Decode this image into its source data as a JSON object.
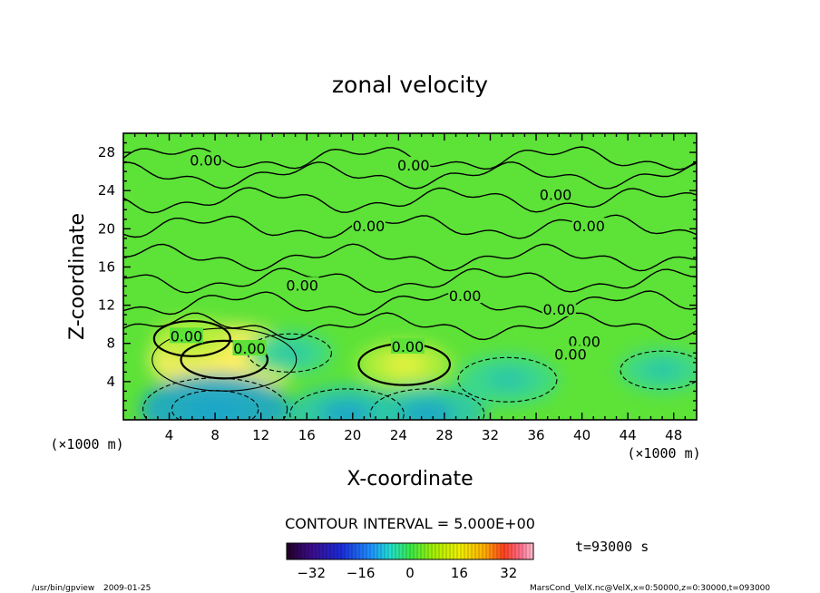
{
  "chart_data": {
    "type": "heatmap",
    "title": "zonal velocity",
    "xlabel": "X-coordinate",
    "ylabel": "Z-coordinate",
    "x_unit": "(×1000 m)",
    "y_unit": "(×1000 m)",
    "xlim": [
      0,
      50
    ],
    "ylim": [
      0,
      30
    ],
    "xticks": [
      4,
      8,
      12,
      16,
      20,
      24,
      28,
      32,
      36,
      40,
      44,
      48
    ],
    "yticks": [
      4,
      8,
      12,
      16,
      20,
      24,
      28
    ],
    "contour_interval_label": "CONTOUR INTERVAL = 5.000E+00",
    "time_label": "t=93000 s",
    "colorbar_ticks": [
      -32,
      -16,
      0,
      16,
      32
    ],
    "colorbar_range": [
      -40,
      40
    ],
    "contour_labels": [
      {
        "text": "0.00",
        "x": 7.2,
        "z": 27.2
      },
      {
        "text": "0.00",
        "x": 25.3,
        "z": 26.7
      },
      {
        "text": "0.00",
        "x": 37.7,
        "z": 23.6
      },
      {
        "text": "0.00",
        "x": 21.4,
        "z": 20.3
      },
      {
        "text": "0.00",
        "x": 40.6,
        "z": 20.3
      },
      {
        "text": "0.00",
        "x": 15.6,
        "z": 14.1
      },
      {
        "text": "0.00",
        "x": 29.8,
        "z": 13.0
      },
      {
        "text": "0.00",
        "x": 38.0,
        "z": 11.6
      },
      {
        "text": "0.00",
        "x": 5.5,
        "z": 8.8
      },
      {
        "text": "0.00",
        "x": 11.0,
        "z": 7.5
      },
      {
        "text": "0.00",
        "x": 24.8,
        "z": 7.7
      },
      {
        "text": "0.00",
        "x": 40.2,
        "z": 8.2
      },
      {
        "text": "0.00",
        "x": 39.0,
        "z": 6.9
      }
    ],
    "field_features": [
      {
        "type": "positive",
        "x": 8.8,
        "z": 6.3,
        "peak": 13
      },
      {
        "type": "positive",
        "x": 24.5,
        "z": 5.8,
        "peak": 6
      },
      {
        "type": "positive",
        "x": 6.0,
        "z": 8.5,
        "peak": 4
      },
      {
        "type": "negative",
        "x": 8.0,
        "z": 1.1,
        "peak": -13
      },
      {
        "type": "negative",
        "x": 19.5,
        "z": 0.6,
        "peak": -9
      },
      {
        "type": "negative",
        "x": 26.5,
        "z": 0.6,
        "peak": -9
      },
      {
        "type": "negative",
        "x": 33.5,
        "z": 4.2,
        "peak": -7
      },
      {
        "type": "negative",
        "x": 14.5,
        "z": 7.0,
        "peak": -5
      },
      {
        "type": "negative",
        "x": 47.0,
        "z": 5.2,
        "peak": -5
      }
    ]
  },
  "footer": {
    "program": "/usr/bin/gpview",
    "date": "2009-01-25",
    "source": "MarsCond_VelX.nc@VelX,x=0:50000,z=0:30000,t=093000"
  }
}
